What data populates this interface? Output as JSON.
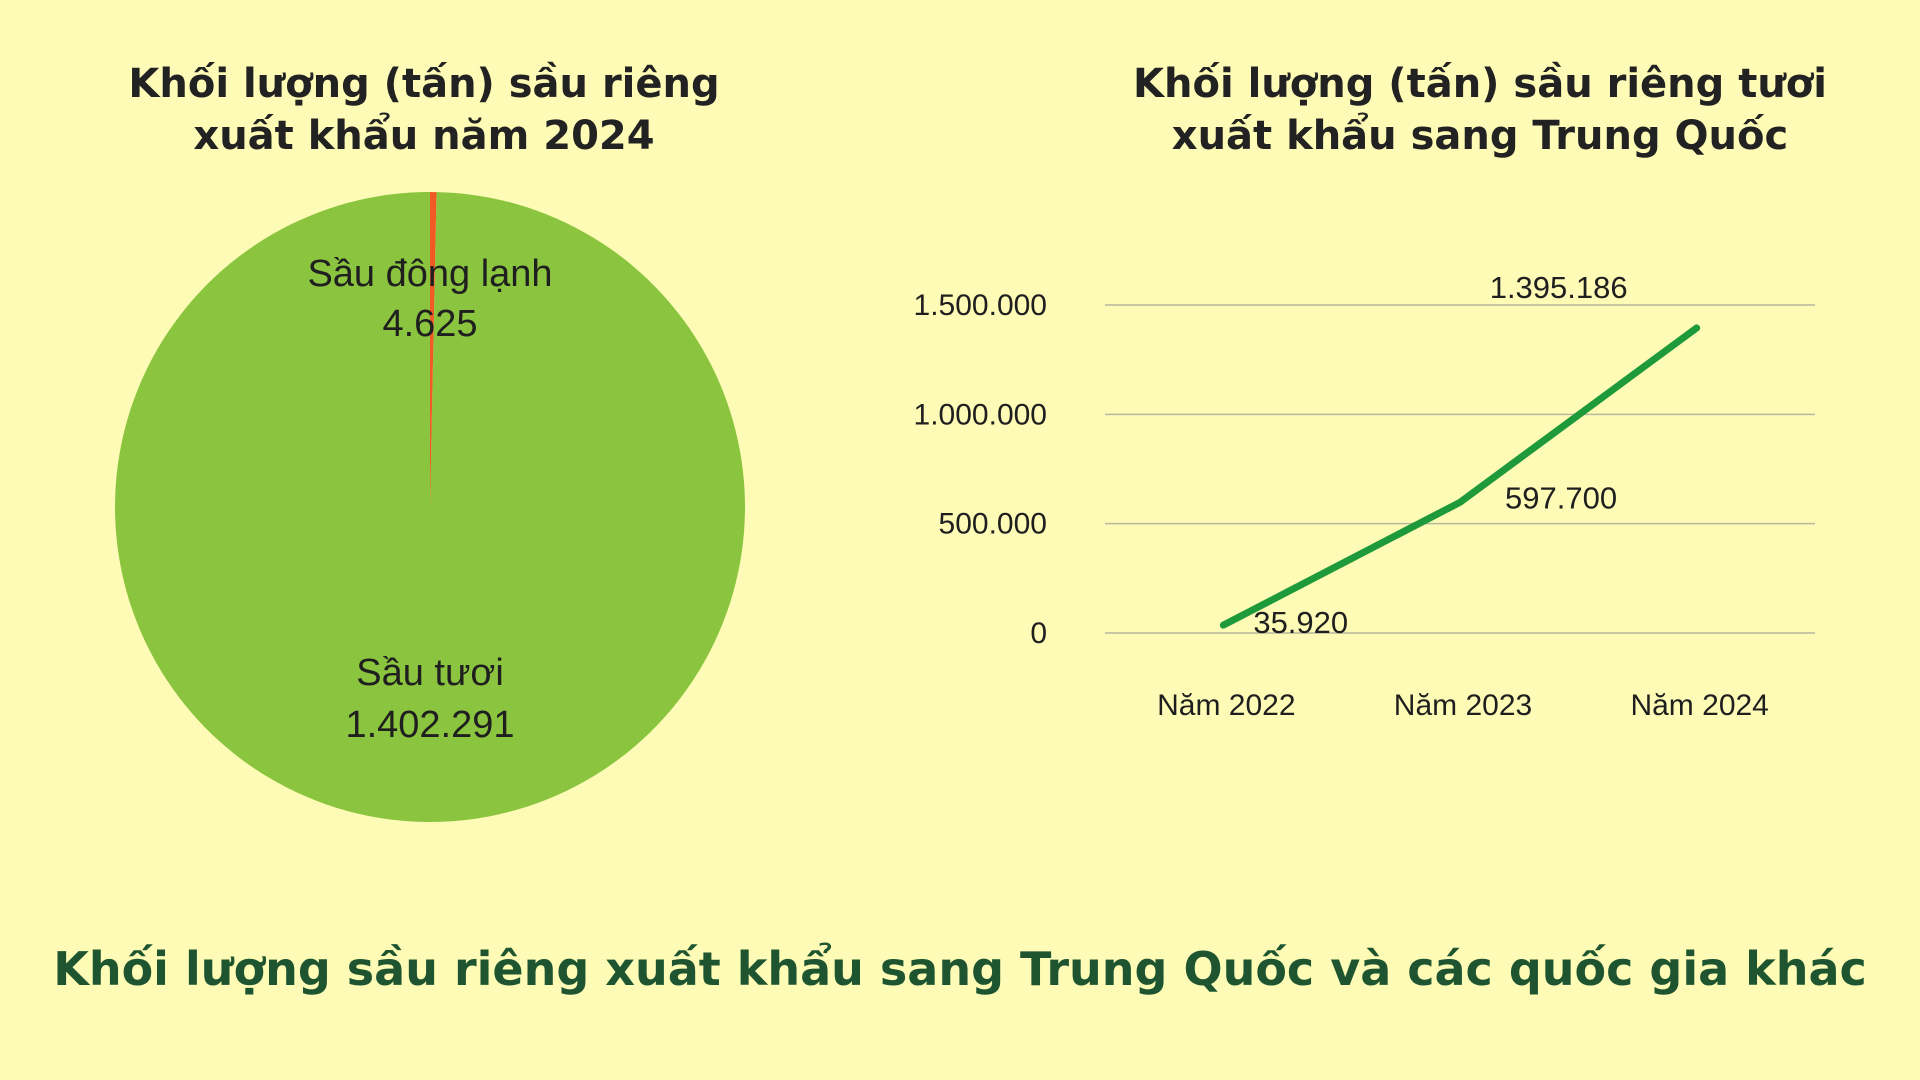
{
  "footer": {
    "title": "Khối lượng sầu riêng xuất khẩu sang Trung Quốc và các quốc gia khác"
  },
  "colors": {
    "background": "#fdfbb5",
    "pie_fresh": "#8bc53f",
    "pie_frozen": "#f15a24",
    "line": "#1e9a3a",
    "grid": "#b8b8a0",
    "footer_text": "#1e5530"
  },
  "chart_data": [
    {
      "type": "pie",
      "title_lines": [
        "Khối lượng (tấn) sầu riêng",
        "xuất khẩu năm 2024"
      ],
      "slices": [
        {
          "name": "Sầu đông lạnh",
          "value": 4625,
          "value_label": "4.625",
          "color": "#f15a24"
        },
        {
          "name": "Sầu tươi",
          "value": 1402291,
          "value_label": "1.402.291",
          "color": "#8bc53f"
        }
      ]
    },
    {
      "type": "line",
      "title_lines": [
        "Khối lượng (tấn) sầu riêng tươi",
        "xuất khẩu sang Trung Quốc"
      ],
      "categories": [
        "Năm 2022",
        "Năm 2023",
        "Năm 2024"
      ],
      "values": [
        35920,
        597700,
        1395186
      ],
      "data_labels": [
        "35.920",
        "597.700",
        "1.395.186"
      ],
      "y_ticks": [
        0,
        500000,
        1000000,
        1500000
      ],
      "y_tick_labels": [
        "0",
        "500.000",
        "1.000.000",
        "1.500.000"
      ],
      "ylim": [
        0,
        1500000
      ],
      "grid": true
    }
  ]
}
